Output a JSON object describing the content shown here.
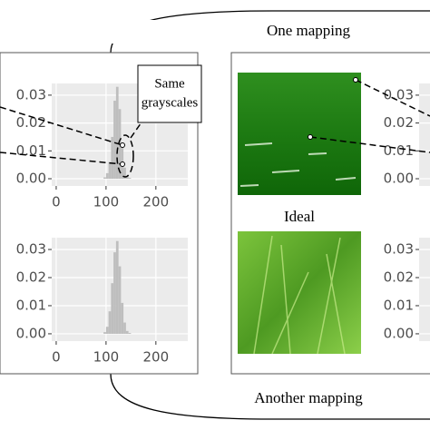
{
  "labels": {
    "top": "One mapping",
    "bottom": "Another mapping",
    "middle": "Ideal",
    "callout": [
      "Same",
      "grayscales"
    ]
  },
  "chart_data": [
    {
      "type": "histogram",
      "bins": [
        95,
        100,
        105,
        110,
        115,
        120,
        125,
        130,
        135,
        140,
        145,
        150
      ],
      "values": [
        0.0005,
        0.002,
        0.006,
        0.015,
        0.028,
        0.033,
        0.025,
        0.012,
        0.004,
        0.001,
        0.0003
      ],
      "color": "#bebebe",
      "xlim": [
        -9,
        264
      ],
      "xticks": [
        0,
        100,
        200
      ],
      "ylim": [
        -0.0026,
        0.0342
      ],
      "yticks": [
        {
          "value": 0,
          "label": "0.00"
        },
        0.01,
        0.02,
        0.03
      ],
      "grid": true
    },
    {
      "type": "histogram",
      "bins": [
        95,
        100,
        105,
        110,
        115,
        120,
        125,
        130,
        135,
        140,
        145,
        150
      ],
      "values": [
        0.0006,
        0.0025,
        0.008,
        0.018,
        0.029,
        0.033,
        0.024,
        0.011,
        0.004,
        0.001,
        0.0003
      ],
      "color": "#bebebe",
      "xlim": [
        -9,
        264
      ],
      "xticks": [
        0,
        100,
        200
      ],
      "ylim": [
        -0.0026,
        0.0342
      ],
      "yticks": [
        {
          "value": 0,
          "label": "0.00"
        },
        0.01,
        0.02,
        0.03
      ],
      "grid": true
    },
    {
      "type": "histogram",
      "ylim": [
        -0.0026,
        0.0342
      ],
      "yticks": [
        {
          "value": 0,
          "label": "0.00"
        },
        0.01,
        0.02,
        0.03
      ],
      "grid": true
    },
    {
      "type": "histogram",
      "ylim": [
        -0.0026,
        0.0342
      ],
      "yticks": [
        {
          "value": 0,
          "label": "0.00"
        },
        0.01,
        0.02,
        0.03
      ],
      "grid": true
    }
  ]
}
